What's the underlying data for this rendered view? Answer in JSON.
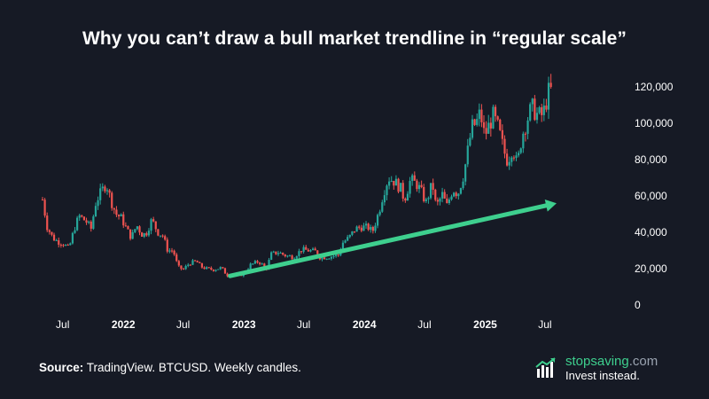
{
  "title": "Why you can’t draw a bull market trendline in “regular scale”",
  "footer": {
    "source_label": "Source:",
    "source_text": " TradingView. BTCUSD. Weekly candles."
  },
  "brand": {
    "name_main": "stopsaving",
    "name_suffix": ".com",
    "tagline": "Invest instead.",
    "icon": "bar-chart-icon"
  },
  "colors": {
    "background": "#161a25",
    "up": "#26a69a",
    "down": "#ef5350",
    "trendline": "#3ecf8e",
    "axis_text": "#ffffff"
  },
  "chart_data": {
    "type": "candlestick",
    "title": "Why you can’t draw a bull market trendline in “regular scale”",
    "interval": "weekly",
    "y_ticks": [
      "0",
      "20,000",
      "40,000",
      "60,000",
      "80,000",
      "100,000",
      "120,000"
    ],
    "y_tick_values": [
      0,
      20000,
      40000,
      60000,
      80000,
      100000,
      120000
    ],
    "ylim": [
      0,
      120000
    ],
    "x_ticks": [
      {
        "label": "Jul",
        "date": "2021-07-01",
        "bold": false
      },
      {
        "label": "2022",
        "date": "2022-01-01",
        "bold": true
      },
      {
        "label": "Jul",
        "date": "2022-07-01",
        "bold": false
      },
      {
        "label": "2023",
        "date": "2023-01-01",
        "bold": true
      },
      {
        "label": "Jul",
        "date": "2023-07-01",
        "bold": false
      },
      {
        "label": "2024",
        "date": "2024-01-01",
        "bold": true
      },
      {
        "label": "Jul",
        "date": "2024-07-01",
        "bold": false
      },
      {
        "label": "2025",
        "date": "2025-01-01",
        "bold": true
      },
      {
        "label": "Jul",
        "date": "2025-07-01",
        "bold": false
      }
    ],
    "xlim": [
      "2021-05-01",
      "2025-07-20"
    ],
    "close_series": [
      [
        "2021-05-01",
        58000
      ],
      [
        "2021-05-15",
        43000
      ],
      [
        "2021-06-01",
        37000
      ],
      [
        "2021-06-15",
        35000
      ],
      [
        "2021-07-01",
        34000
      ],
      [
        "2021-07-20",
        31000
      ],
      [
        "2021-08-05",
        42000
      ],
      [
        "2021-08-20",
        49000
      ],
      [
        "2021-09-10",
        46000
      ],
      [
        "2021-09-25",
        42000
      ],
      [
        "2021-10-10",
        57000
      ],
      [
        "2021-10-25",
        62000
      ],
      [
        "2021-11-10",
        67000
      ],
      [
        "2021-11-25",
        57000
      ],
      [
        "2021-12-10",
        50000
      ],
      [
        "2021-12-25",
        48000
      ],
      [
        "2022-01-10",
        42000
      ],
      [
        "2022-01-25",
        37000
      ],
      [
        "2022-02-10",
        44000
      ],
      [
        "2022-02-25",
        39000
      ],
      [
        "2022-03-10",
        39000
      ],
      [
        "2022-03-28",
        47000
      ],
      [
        "2022-04-15",
        40000
      ],
      [
        "2022-05-01",
        38000
      ],
      [
        "2022-05-15",
        30000
      ],
      [
        "2022-06-01",
        30000
      ],
      [
        "2022-06-15",
        21000
      ],
      [
        "2022-07-01",
        19500
      ],
      [
        "2022-07-20",
        23000
      ],
      [
        "2022-08-10",
        24000
      ],
      [
        "2022-08-25",
        21000
      ],
      [
        "2022-09-10",
        20000
      ],
      [
        "2022-10-01",
        19500
      ],
      [
        "2022-10-25",
        20500
      ],
      [
        "2022-11-10",
        16500
      ],
      [
        "2022-11-25",
        16500
      ],
      [
        "2022-12-15",
        16800
      ],
      [
        "2023-01-01",
        16600
      ],
      [
        "2023-01-20",
        22000
      ],
      [
        "2023-02-15",
        24000
      ],
      [
        "2023-03-10",
        20000
      ],
      [
        "2023-03-25",
        28000
      ],
      [
        "2023-04-15",
        29000
      ],
      [
        "2023-05-10",
        27000
      ],
      [
        "2023-06-01",
        26500
      ],
      [
        "2023-06-25",
        30500
      ],
      [
        "2023-07-15",
        30000
      ],
      [
        "2023-08-10",
        29400
      ],
      [
        "2023-08-20",
        26000
      ],
      [
        "2023-09-15",
        26500
      ],
      [
        "2023-10-15",
        27500
      ],
      [
        "2023-10-25",
        34000
      ],
      [
        "2023-11-15",
        37000
      ],
      [
        "2023-12-05",
        42000
      ],
      [
        "2023-12-25",
        43000
      ],
      [
        "2024-01-15",
        42500
      ],
      [
        "2024-01-25",
        40000
      ],
      [
        "2024-02-15",
        52000
      ],
      [
        "2024-02-28",
        62000
      ],
      [
        "2024-03-14",
        70000
      ],
      [
        "2024-04-01",
        68000
      ],
      [
        "2024-04-20",
        64000
      ],
      [
        "2024-05-01",
        58000
      ],
      [
        "2024-05-20",
        69000
      ],
      [
        "2024-06-10",
        66000
      ],
      [
        "2024-06-25",
        61000
      ],
      [
        "2024-07-05",
        56000
      ],
      [
        "2024-07-25",
        67000
      ],
      [
        "2024-08-05",
        54000
      ],
      [
        "2024-08-25",
        61000
      ],
      [
        "2024-09-06",
        54000
      ],
      [
        "2024-09-25",
        64000
      ],
      [
        "2024-10-10",
        61000
      ],
      [
        "2024-10-28",
        72000
      ],
      [
        "2024-11-12",
        88000
      ],
      [
        "2024-11-22",
        98000
      ],
      [
        "2024-12-05",
        100000
      ],
      [
        "2024-12-17",
        106000
      ],
      [
        "2024-12-30",
        93000
      ],
      [
        "2025-01-15",
        100000
      ],
      [
        "2025-01-25",
        104000
      ],
      [
        "2025-02-10",
        97000
      ],
      [
        "2025-02-28",
        84000
      ],
      [
        "2025-03-10",
        79000
      ],
      [
        "2025-03-25",
        87000
      ],
      [
        "2025-04-08",
        77000
      ],
      [
        "2025-04-22",
        93000
      ],
      [
        "2025-05-10",
        103000
      ],
      [
        "2025-05-22",
        109000
      ],
      [
        "2025-06-05",
        105000
      ],
      [
        "2025-06-20",
        104000
      ],
      [
        "2025-07-01",
        108000
      ],
      [
        "2025-07-10",
        117000
      ],
      [
        "2025-07-20",
        118000
      ]
    ],
    "annotations": [
      {
        "type": "arrow",
        "from": [
          "2022-11-20",
          16000
        ],
        "to": [
          "2025-08-05",
          56000
        ]
      }
    ],
    "grid": false,
    "legend": "none"
  }
}
